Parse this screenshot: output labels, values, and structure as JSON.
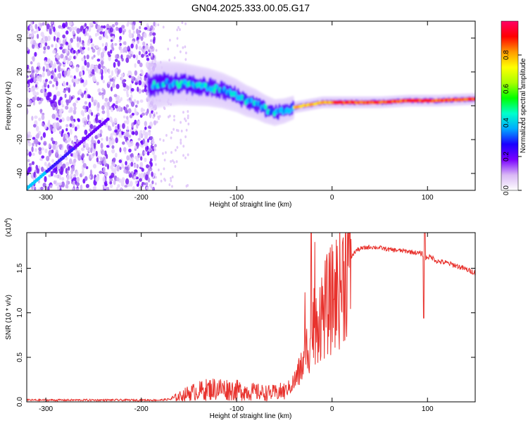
{
  "title": "GN04.2025.333.00.05.G17",
  "colors": {
    "snr_line": "#e8322d",
    "axis": "#000000",
    "background": "#ffffff"
  },
  "chart_data": [
    {
      "type": "heatmap",
      "name": "spectrogram",
      "xlabel": "Height of straight line (km)",
      "ylabel": "Frequency (Hz)",
      "xlim": [
        -320,
        150
      ],
      "ylim": [
        -50,
        50
      ],
      "x_ticks": [
        -300,
        -200,
        -100,
        0,
        100
      ],
      "x_tick_labels": [
        "-300",
        "-200",
        "-100",
        "0",
        "100"
      ],
      "y_ticks": [
        -40,
        -20,
        0,
        20,
        40
      ],
      "y_tick_labels": [
        "-40",
        "-20",
        "0",
        "20",
        "40"
      ],
      "ridge": {
        "x": [
          -190,
          -175,
          -160,
          -145,
          -130,
          -115,
          -100,
          -90,
          -80,
          -70,
          -60,
          -50,
          -40,
          -30,
          -20,
          -10,
          0,
          20,
          50,
          80,
          110,
          150
        ],
        "y": [
          12,
          13,
          13,
          12,
          11,
          9,
          6,
          3,
          1,
          -2,
          -4,
          -3,
          -1,
          0,
          1,
          2,
          2,
          2,
          2,
          3,
          3,
          4
        ]
      },
      "diagonal_feature": {
        "x": [
          -320,
          -235
        ],
        "y": [
          -49,
          -8
        ]
      },
      "colorbar": {
        "label": "Normalized spectral amplitude",
        "range": [
          0,
          1
        ],
        "ticks": [
          0.0,
          0.2,
          0.4,
          0.6,
          0.8
        ],
        "tick_labels": [
          "0.0",
          "0.2",
          "0.4",
          "0.6",
          "0.8"
        ],
        "stops": [
          "#ffffff",
          "#d9b8f5",
          "#7a00ff",
          "#1a00ff",
          "#00aaff",
          "#00ffcc",
          "#00ff00",
          "#aaff00",
          "#ffff00",
          "#ff9900",
          "#ff0000",
          "#ff0066"
        ]
      }
    },
    {
      "type": "line",
      "name": "snr",
      "xlabel": "Height of straight line (km)",
      "ylabel": "SNR (10 * v/v)",
      "y_multiplier": "(x10",
      "y_multiplier_exp": "4",
      "y_multiplier_close": ")",
      "xlim": [
        -320,
        150
      ],
      "ylim": [
        0,
        1.9
      ],
      "x_ticks": [
        -300,
        -200,
        -100,
        0,
        100
      ],
      "x_tick_labels": [
        "-300",
        "-200",
        "-100",
        "0",
        "100"
      ],
      "y_ticks": [
        0.0,
        0.5,
        1.0,
        1.5
      ],
      "y_tick_labels": [
        "0.0",
        "0.5",
        "1.0",
        "1.5"
      ],
      "series": [
        {
          "name": "SNR",
          "x": [
            -320,
            -300,
            -250,
            -200,
            -180,
            -170,
            -160,
            -150,
            -140,
            -130,
            -120,
            -110,
            -100,
            -90,
            -80,
            -70,
            -60,
            -50,
            -45,
            -40,
            -35,
            -30,
            -25,
            -20,
            -15,
            -10,
            -5,
            0,
            5,
            10,
            15,
            20,
            25,
            30,
            40,
            50,
            60,
            70,
            80,
            90,
            95,
            97,
            100,
            105,
            110,
            120,
            130,
            140,
            150
          ],
          "y": [
            0.02,
            0.02,
            0.02,
            0.02,
            0.02,
            0.03,
            0.06,
            0.1,
            0.12,
            0.14,
            0.15,
            0.14,
            0.13,
            0.12,
            0.11,
            0.1,
            0.1,
            0.12,
            0.16,
            0.22,
            0.32,
            0.45,
            0.65,
            0.85,
            0.95,
            1.0,
            1.08,
            1.15,
            1.25,
            1.35,
            1.5,
            1.62,
            1.7,
            1.72,
            1.74,
            1.73,
            1.71,
            1.7,
            1.69,
            1.67,
            1.66,
            1.6,
            1.63,
            1.62,
            1.58,
            1.56,
            1.53,
            1.49,
            1.45
          ]
        }
      ],
      "annotations": [
        {
          "x": -22,
          "y": 1.9,
          "note": "spike"
        },
        {
          "x": 97,
          "y": 1.92,
          "note": "spike"
        },
        {
          "x": 96,
          "y": 0.94,
          "note": "dip"
        }
      ]
    }
  ]
}
